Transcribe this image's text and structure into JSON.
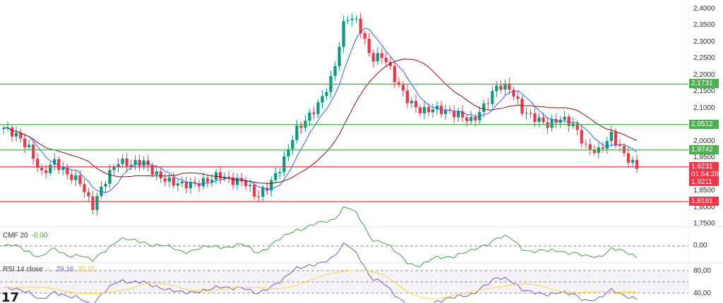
{
  "chart_data": {
    "type": "candlestick",
    "price_axis": {
      "ticks": [
        "2,4000",
        "2,3500",
        "2,3000",
        "2,2500",
        "2,2000",
        "2,1500",
        "2,1000",
        "2,0000",
        "1,9500",
        "1,8500",
        "1,8000",
        "1,7500"
      ],
      "tick_values": [
        2.4,
        2.35,
        2.3,
        2.25,
        2.2,
        2.15,
        2.1,
        2.0,
        1.95,
        1.85,
        1.8,
        1.75
      ],
      "range": [
        1.75,
        2.41
      ]
    },
    "closes": [
      2.04,
      2.02,
      1.98,
      1.9,
      1.94,
      1.9,
      1.88,
      1.8,
      1.88,
      1.94,
      1.93,
      1.94,
      1.9,
      1.88,
      1.87,
      1.87,
      1.88,
      1.9,
      1.88,
      1.88,
      1.83,
      1.87,
      1.93,
      2.03,
      2.07,
      2.12,
      2.2,
      2.38,
      2.36,
      2.25,
      2.26,
      2.18,
      2.12,
      2.09,
      2.1,
      2.09,
      2.08,
      2.06,
      2.11,
      2.17,
      2.16,
      2.09,
      2.07,
      2.05,
      2.07,
      2.05,
      1.98,
      1.97,
      2.02,
      1.96,
      1.92
    ],
    "levels": [
      {
        "value": 2.1731,
        "label": "2,1731",
        "color": "#4caf50"
      },
      {
        "value": 2.0512,
        "label": "2,0512",
        "color": "#4caf50"
      },
      {
        "value": 1.9742,
        "label": "1,9742",
        "color": "#4caf50"
      },
      {
        "value": 1.9231,
        "label": "1,9231",
        "color": "#f23645"
      },
      {
        "value": 1.8181,
        "label": "1,8181",
        "color": "#f23645"
      }
    ],
    "current_price": {
      "label": "1,9231",
      "countdown": "01:54:28",
      "low_label": "1,9211"
    },
    "cmf": {
      "title": "CMF 20",
      "value": "-0,00",
      "zero_tick": "0,00"
    },
    "rsi": {
      "title": "RSI 14 close",
      "value": "29,16",
      "ma_value": "35,15",
      "ticks": [
        "80,00",
        "40,00"
      ]
    }
  },
  "colors": {
    "up": "#089981",
    "down": "#f23645",
    "blue": "#2962ff",
    "maroon": "#880e0e",
    "cmf": "#43a047",
    "rsi": "#7e57c2",
    "rsi_ma": "#fdd835"
  }
}
